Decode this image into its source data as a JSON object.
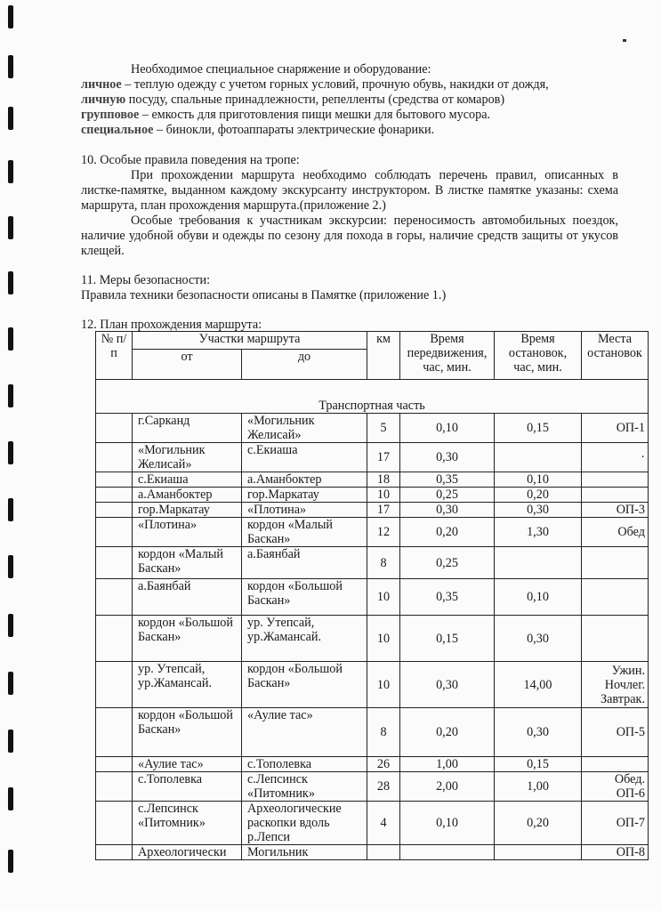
{
  "equipment": {
    "heading": "Необходимое специальное снаряжение и оборудование:",
    "lines": [
      {
        "lead": "личное",
        "text": " – теплую одежду с учетом горных условий, прочную обувь, накидки от дождя,"
      },
      {
        "lead": "личную",
        "text": " посуду, спальные принадлежности, репелленты (средства от комаров)"
      },
      {
        "lead": "групповое",
        "text": " – емкость для приготовления пищи мешки для бытового мусора."
      },
      {
        "lead": "специальное",
        "text": " – бинокли, фотоаппараты электрические фонарики."
      }
    ]
  },
  "section10": {
    "heading": "10.  Особые правила поведения на тропе:",
    "para1": "При прохождении маршрута необходимо соблюдать перечень правил, описанных в листке-памятке, выданном каждому экскурсанту  инструктором. В листке памятке указаны: схема маршрута, план прохождения маршрута.(приложение 2.)",
    "para2": "Особые требования к участникам экскурсии: переносимость автомобильных поездок, наличие удобной обуви и одежды по сезону для похода в горы, наличие средств защиты от укусов клещей."
  },
  "section11": {
    "heading": "11. Меры безопасности:",
    "text": "Правила техники безопасности описаны в Памятке (приложение 1.)"
  },
  "section12": {
    "heading": "12. План прохождения маршрута:",
    "table": {
      "headers": {
        "num": "№ п/п",
        "segments": "Участки маршрута",
        "from": "от",
        "to": "до",
        "km": "км",
        "move_time": "Время передвижения, час, мин.",
        "stop_time": "Время остановок, час, мин.",
        "stops": "Места остановок"
      },
      "section_label": "Транспортная часть",
      "rows": [
        {
          "from": "г.Сарканд",
          "to": "«Могильник Желисай»",
          "km": "5",
          "move": "0,10",
          "stop": "0,15",
          "place": "ОП-1"
        },
        {
          "from": "«Могильник Желисай»",
          "to": "с.Екиаша",
          "km": "17",
          "move": "0,30",
          "stop": "",
          "place": "·"
        },
        {
          "from": "с.Екиаша",
          "to": "а.Аманбоктер",
          "km": "18",
          "move": "0,35",
          "stop": "0,10",
          "place": ""
        },
        {
          "from": "а.Аманбоктер",
          "to": "гор.Маркатау",
          "km": "10",
          "move": "0,25",
          "stop": "0,20",
          "place": ""
        },
        {
          "from": "гор.Маркатау",
          "to": "«Плотина»",
          "km": "17",
          "move": "0,30",
          "stop": "0,30",
          "place": "ОП-3"
        },
        {
          "from": "«Плотина»",
          "to": "кордон «Малый Баскан»",
          "km": "12",
          "move": "0,20",
          "stop": "1,30",
          "place": "Обед"
        },
        {
          "from": "кордон «Малый Баскан»",
          "to": "а.Баянбай",
          "km": "8",
          "move": "0,25",
          "stop": "",
          "place": ""
        },
        {
          "from": "а.Баянбай",
          "to": "кордон «Большой Баскан»",
          "km": "10",
          "move": "0,35",
          "stop": "0,10",
          "place": ""
        },
        {
          "from": "кордон «Большой Баскан»",
          "to": "ур. Утепсай, ур.Жамансай.",
          "km": "10",
          "move": "0,15",
          "stop": "0,30",
          "place": ""
        },
        {
          "from": "ур. Утепсай, ур.Жамансай.",
          "to": "кордон «Большой Баскан»",
          "km": "10",
          "move": "0,30",
          "stop": "14,00",
          "place": "Ужин. Ночлег. Завтрак."
        },
        {
          "from": "кордон «Большой Баскан»",
          "to": "«Аулие тас»",
          "km": "8",
          "move": "0,20",
          "stop": "0,30",
          "place": "ОП-5"
        },
        {
          "from": "«Аулие тас»",
          "to": "с.Тополевка",
          "km": "26",
          "move": "1,00",
          "stop": "0,15",
          "place": ""
        },
        {
          "from": "с.Тополевка",
          "to": "с.Лепсинск «Питомник»",
          "km": "28",
          "move": "2,00",
          "stop": "1,00",
          "place": "Обед. ОП-6"
        },
        {
          "from": "с.Лепсинск «Питомник»",
          "to": "Археологические раскопки вдоль р.Лепси",
          "km": "4",
          "move": "0,10",
          "stop": "0,20",
          "place": "ОП-7"
        },
        {
          "from": "Археологически",
          "to": "Могильник",
          "km": "",
          "move": "",
          "stop": "",
          "place": "ОП-8"
        }
      ]
    }
  }
}
